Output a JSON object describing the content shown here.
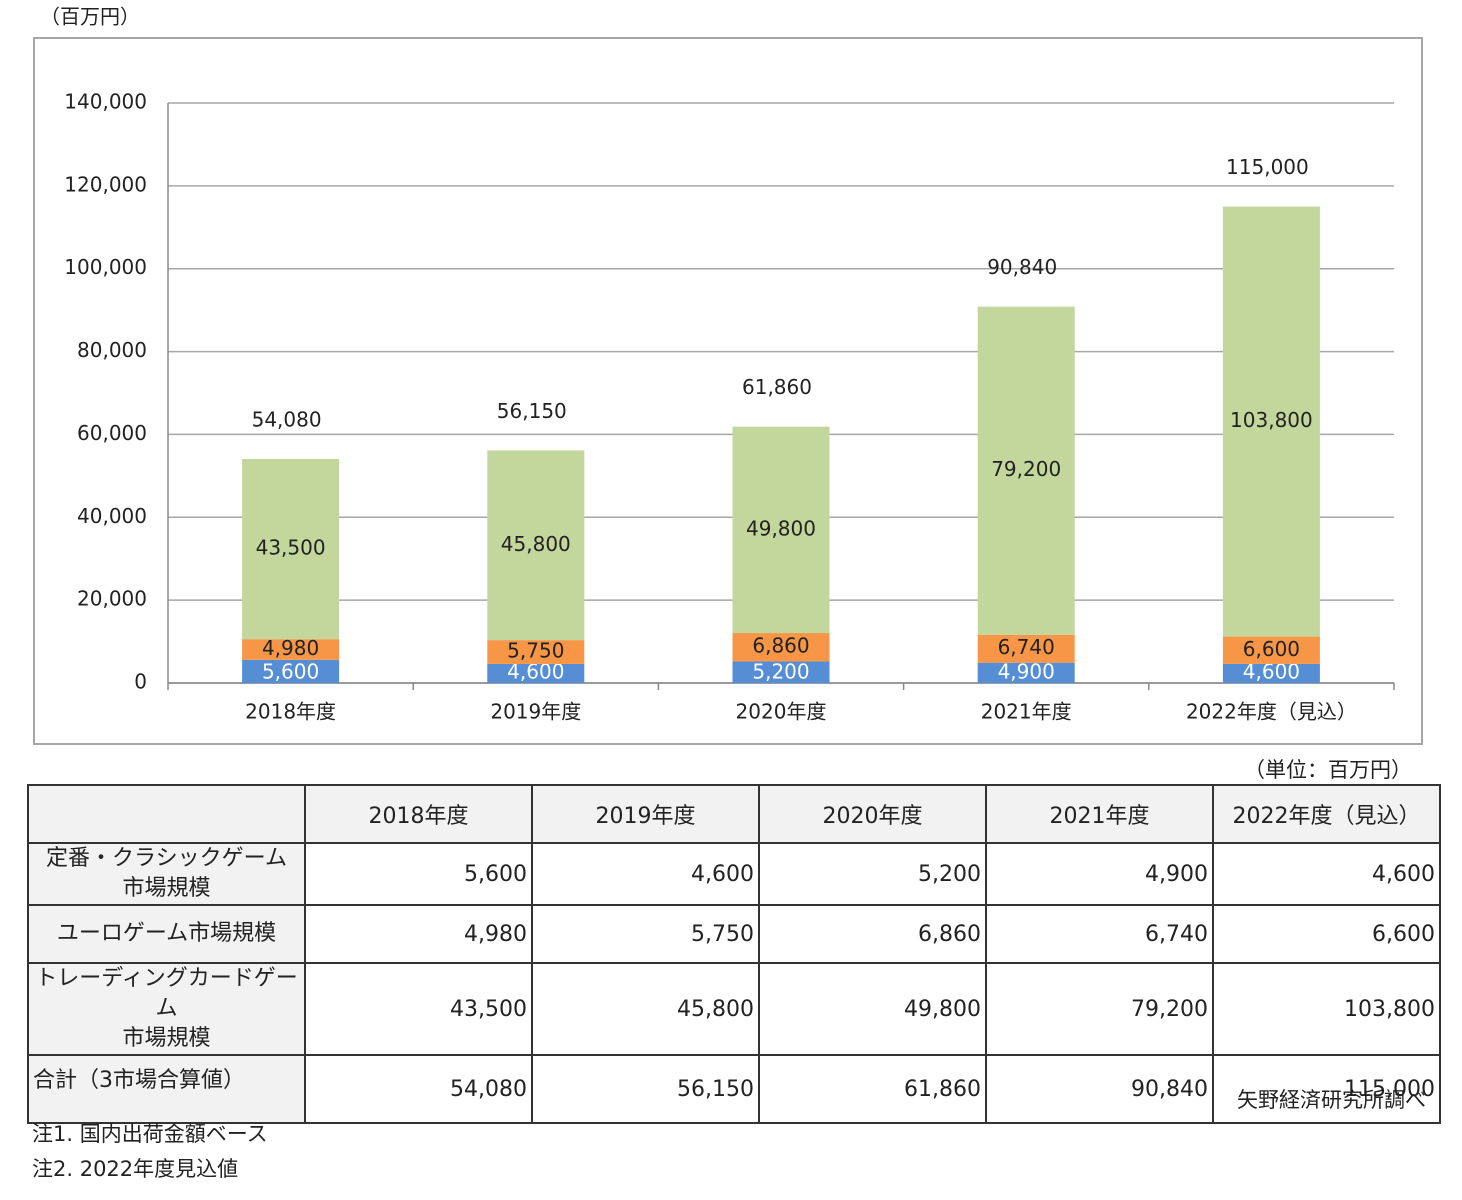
{
  "chart_data": {
    "type": "stacked_bar",
    "y_unit": "（百万円）",
    "categories": [
      "2018年度",
      "2019年度",
      "2020年度",
      "2021年度",
      "2022年度（見込）"
    ],
    "series": [
      {
        "name": "定番・クラシックゲーム\n市場規模",
        "color": "#558ed5",
        "values": [
          5600,
          4600,
          5200,
          4900,
          4600
        ],
        "value_labels": [
          "5,600",
          "4,600",
          "5,200",
          "4,900",
          "4,600"
        ]
      },
      {
        "name": "ユーロゲーム市場規模",
        "color": "#f79646",
        "values": [
          4980,
          5750,
          6860,
          6740,
          6600
        ],
        "value_labels": [
          "4,980",
          "5,750",
          "6,860",
          "6,740",
          "6,600"
        ]
      },
      {
        "name": "トレーディングカードゲーム\n市場規模",
        "color": "#c3d69b",
        "values": [
          43500,
          45800,
          49800,
          79200,
          103800
        ],
        "value_labels": [
          "43,500",
          "45,800",
          "49,800",
          "79,200",
          "103,800"
        ]
      }
    ],
    "total": {
      "name": "合計（3市場合算値）",
      "values": [
        54080,
        56150,
        61860,
        90840,
        115000
      ],
      "value_labels": [
        "54,080",
        "56,150",
        "61,860",
        "90,840",
        "115,000"
      ]
    },
    "ylim": [
      0,
      140000
    ],
    "yticks": [
      0,
      {
        "value": 20000,
        "label": "20,000"
      },
      {
        "value": 40000,
        "label": "40,000"
      },
      {
        "value": 60000,
        "label": "60,000"
      },
      {
        "value": 80000,
        "label": "80,000"
      },
      {
        "value": 100000,
        "label": "100,000"
      },
      {
        "value": 120000,
        "label": "120,000"
      },
      {
        "value": 140000,
        "label": "140,000"
      }
    ],
    "grid": true,
    "table_unit": "（単位：百万円）",
    "source": "矢野経済研究所調べ",
    "notes": [
      "注1. 国内出荷金額ベース",
      "注2. 2022年度見込値"
    ]
  }
}
